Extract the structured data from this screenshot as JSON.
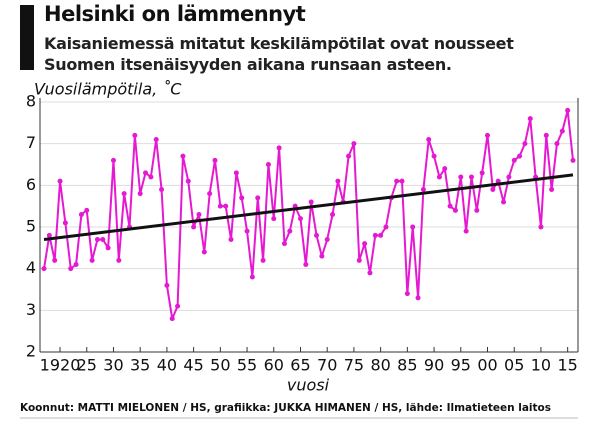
{
  "chart_data": {
    "type": "line",
    "title": "Helsinki on lämmennyt",
    "subtitle": "Kaisaniemessä mitatut keskilämpötilat ovat nousseet Suomen itsenäisyyden aikana runsaan asteen.",
    "y_label": "Vuosilämpötila, ˚C",
    "x_label": "vuosi",
    "source": "Koonnut: MATTI MIELONEN / HS, grafiikka: JUKKA HIMANEN / HS, lähde: Ilmatieteen laitos",
    "x": [
      1917,
      1918,
      1919,
      1920,
      1921,
      1922,
      1923,
      1924,
      1925,
      1926,
      1927,
      1928,
      1929,
      1930,
      1931,
      1932,
      1933,
      1934,
      1935,
      1936,
      1937,
      1938,
      1939,
      1940,
      1941,
      1942,
      1943,
      1944,
      1945,
      1946,
      1947,
      1948,
      1949,
      1950,
      1951,
      1952,
      1953,
      1954,
      1955,
      1956,
      1957,
      1958,
      1959,
      1960,
      1961,
      1962,
      1963,
      1964,
      1965,
      1966,
      1967,
      1968,
      1969,
      1970,
      1971,
      1972,
      1973,
      1974,
      1975,
      1976,
      1977,
      1978,
      1979,
      1980,
      1981,
      1982,
      1983,
      1984,
      1985,
      1986,
      1987,
      1988,
      1989,
      1990,
      1991,
      1992,
      1993,
      1994,
      1995,
      1996,
      1997,
      1998,
      1999,
      2000,
      2001,
      2002,
      2003,
      2004,
      2005,
      2006,
      2007,
      2008,
      2009,
      2010,
      2011,
      2012,
      2013,
      2014,
      2015,
      2016
    ],
    "series": [
      {
        "color": "#e619d2",
        "values": [
          4.0,
          4.8,
          4.2,
          6.1,
          5.1,
          4.0,
          4.1,
          5.3,
          5.4,
          4.2,
          4.7,
          4.7,
          4.5,
          6.6,
          4.2,
          5.8,
          5.0,
          7.2,
          5.8,
          6.3,
          6.2,
          7.1,
          5.9,
          3.6,
          2.8,
          3.1,
          6.7,
          6.1,
          5.0,
          5.3,
          4.4,
          5.8,
          6.6,
          5.5,
          5.5,
          4.7,
          6.3,
          5.7,
          4.9,
          3.8,
          5.7,
          4.2,
          6.5,
          5.2,
          6.9,
          4.6,
          4.9,
          5.5,
          5.2,
          4.1,
          5.6,
          4.8,
          4.3,
          4.7,
          5.3,
          6.1,
          5.6,
          6.7,
          7.0,
          4.2,
          4.6,
          3.9,
          4.8,
          4.8,
          5.0,
          5.7,
          6.1,
          6.1,
          3.4,
          5.0,
          3.3,
          5.9,
          7.1,
          6.7,
          6.2,
          6.4,
          5.5,
          5.4,
          6.2,
          4.9,
          6.2,
          5.4,
          6.3,
          7.2,
          5.9,
          6.1,
          5.6,
          6.2,
          6.6,
          6.7,
          7.0,
          7.6,
          6.2,
          5.0,
          7.2,
          5.9,
          7.0,
          7.3,
          7.8,
          6.6
        ]
      }
    ],
    "trend": {
      "color": "#111111",
      "x": [
        1917,
        2016
      ],
      "values": [
        4.7,
        6.25
      ]
    },
    "xlim": [
      1917,
      2016
    ],
    "xticks": [
      1920,
      {
        "value": 1925,
        "label": "25"
      },
      {
        "value": 1930,
        "label": "30"
      },
      {
        "value": 1935,
        "label": "35"
      },
      {
        "value": 1940,
        "label": "40"
      },
      {
        "value": 1945,
        "label": "45"
      },
      {
        "value": 1950,
        "label": "50"
      },
      {
        "value": 1955,
        "label": "55"
      },
      {
        "value": 1960,
        "label": "60"
      },
      {
        "value": 1965,
        "label": "65"
      },
      {
        "value": 1970,
        "label": "70"
      },
      {
        "value": 1975,
        "label": "75"
      },
      {
        "value": 1980,
        "label": "80"
      },
      {
        "value": 1985,
        "label": "85"
      },
      {
        "value": 1990,
        "label": "90"
      },
      {
        "value": 1995,
        "label": "95"
      },
      {
        "value": 2000,
        "label": "00"
      },
      {
        "value": 2005,
        "label": "05"
      },
      {
        "value": 2010,
        "label": "10"
      },
      {
        "value": 2015,
        "label": "15"
      }
    ],
    "ylim": [
      2,
      8
    ],
    "yticks": [
      2,
      3,
      4,
      5,
      6,
      7,
      8
    ],
    "grid": true
  }
}
